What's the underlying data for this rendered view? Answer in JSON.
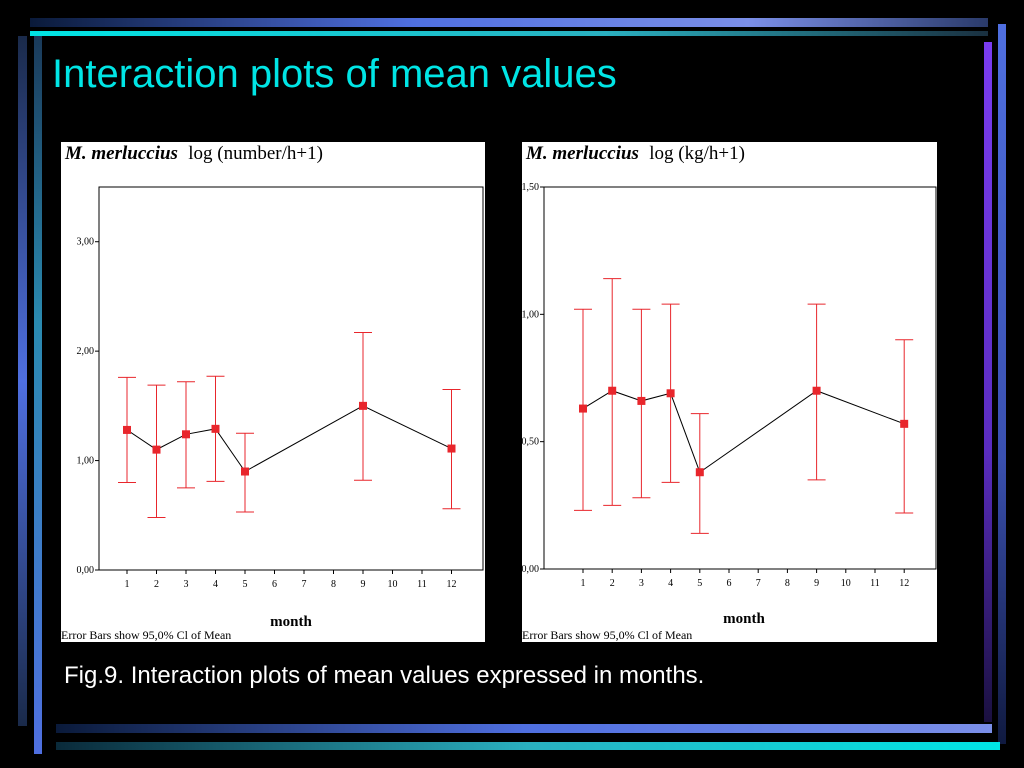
{
  "slide": {
    "title": "Interaction plots of mean values",
    "caption": "Fig.9. Interaction plots of mean values expressed in months."
  },
  "colors": {
    "background": "#000000",
    "title": "#00E5E5",
    "caption": "#FFFFFF",
    "point": "#E8262C",
    "errorbar": "#E8262C",
    "line": "#000000",
    "bar_cyan": "#00E5E5",
    "bar_blue": "#4F6FE0",
    "bar_violet": "#7A3CF0"
  },
  "chart_data": [
    {
      "type": "line",
      "title_species": "M. merluccius",
      "title_rest": "log (number/h+1)",
      "xlabel": "month",
      "ylabel": "",
      "x_ticks": [
        "1",
        "2",
        "3",
        "4",
        "5",
        "6",
        "7",
        "8",
        "9",
        "10",
        "11",
        "12"
      ],
      "y_ticks": [
        "0,00",
        "1,00",
        "2,00",
        "3,00"
      ],
      "ylim": [
        0,
        3.5
      ],
      "series": [
        {
          "x": [
            1,
            2,
            3,
            4,
            5,
            9,
            12
          ],
          "values": [
            1.28,
            1.1,
            1.24,
            1.29,
            0.9,
            1.5,
            1.11
          ],
          "ci_lower": [
            0.8,
            0.48,
            0.75,
            0.81,
            0.53,
            0.82,
            0.56
          ],
          "ci_upper": [
            1.76,
            1.69,
            1.72,
            1.77,
            1.25,
            2.17,
            1.65
          ]
        }
      ],
      "note": "Error Bars show 95,0% Cl of Mean",
      "grid": false
    },
    {
      "type": "line",
      "title_species": "M. merluccius",
      "title_rest": "log (kg/h+1)",
      "xlabel": "month",
      "ylabel": "",
      "x_ticks": [
        "1",
        "2",
        "3",
        "4",
        "5",
        "6",
        "7",
        "8",
        "9",
        "10",
        "11",
        "12"
      ],
      "y_ticks": [
        "0,00",
        "0,50",
        "1,00",
        "1,50"
      ],
      "ylim": [
        0,
        1.5
      ],
      "series": [
        {
          "x": [
            1,
            2,
            3,
            4,
            5,
            9,
            12
          ],
          "values": [
            0.63,
            0.7,
            0.66,
            0.69,
            0.38,
            0.7,
            0.57
          ],
          "ci_lower": [
            0.23,
            0.25,
            0.28,
            0.34,
            0.14,
            0.35,
            0.22
          ],
          "ci_upper": [
            1.02,
            1.14,
            1.02,
            1.04,
            0.61,
            1.04,
            0.9
          ]
        }
      ],
      "note": "Error Bars show 95,0% Cl of Mean",
      "grid": false
    }
  ]
}
